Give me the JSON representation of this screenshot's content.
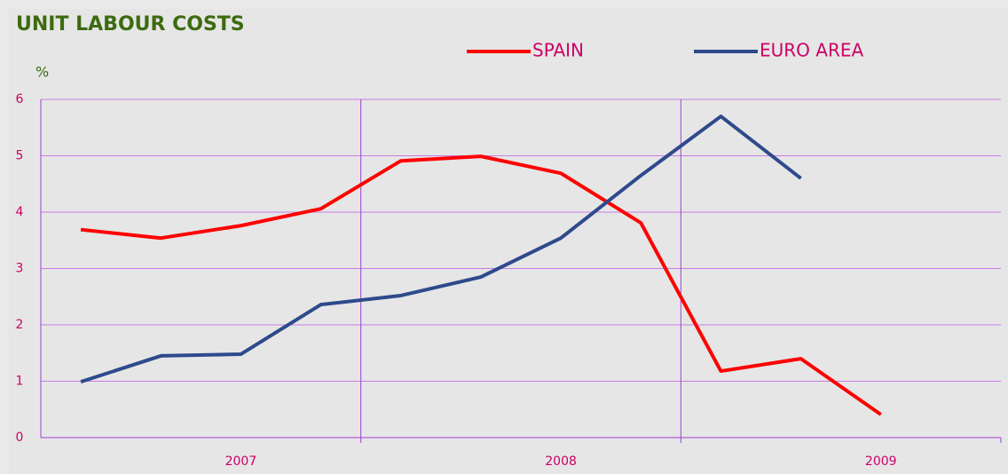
{
  "chart_data": {
    "type": "line",
    "title": "UNIT LABOUR COSTS",
    "y_label": "%",
    "categories": [
      null,
      null,
      "2007",
      null,
      null,
      null,
      "2008",
      null,
      null,
      null,
      "2009",
      null
    ],
    "series": [
      {
        "name": "SPAIN",
        "color": "#ff0000",
        "values": [
          3.69,
          3.54,
          3.76,
          4.06,
          4.91,
          4.99,
          4.69,
          3.81,
          1.18,
          1.4,
          0.41,
          null
        ]
      },
      {
        "name": "EURO AREA",
        "color": "#2e4a8c",
        "values": [
          0.99,
          1.45,
          1.48,
          2.36,
          2.52,
          2.85,
          3.54,
          4.65,
          5.7,
          4.6,
          null,
          null
        ]
      }
    ],
    "ylim": [
      0,
      6
    ],
    "yticks": [
      0,
      1,
      2,
      3,
      4,
      5,
      6
    ],
    "grid": true
  }
}
